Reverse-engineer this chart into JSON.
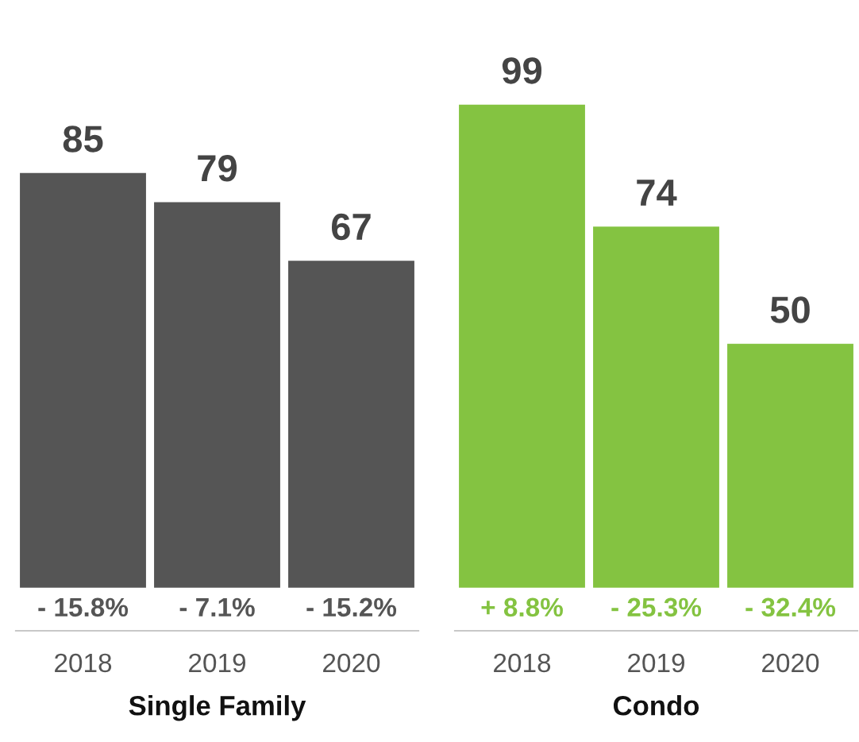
{
  "chart_data": [
    {
      "type": "bar",
      "categories": [
        "2018",
        "2019",
        "2020"
      ],
      "values": [
        85,
        79,
        67
      ],
      "color": "#555555",
      "data_labels": true,
      "xlabel": "Single Family",
      "tick_labels": "x",
      "grid": false,
      "legend": false,
      "annotations": [
        "- 15.8%",
        "- 7.1%",
        "- 15.2%"
      ]
    },
    {
      "type": "bar",
      "categories": [
        "2018",
        "2019",
        "2020"
      ],
      "values": [
        99,
        74,
        50
      ],
      "color": "#84c341",
      "data_labels": true,
      "xlabel": "Condo",
      "tick_labels": "x",
      "grid": false,
      "legend": false,
      "annotations": [
        "+ 8.8%",
        "- 25.3%",
        "- 32.4%"
      ]
    }
  ]
}
